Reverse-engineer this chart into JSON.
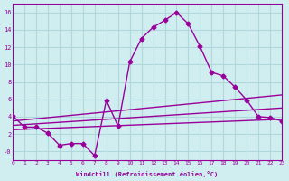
{
  "xlabel": "Windchill (Refroidissement éolien,°C)",
  "background_color": "#d0eef0",
  "grid_color": "#b0d8dc",
  "line_color": "#990099",
  "xlim": [
    0,
    23
  ],
  "ylim": [
    -1,
    17
  ],
  "xticks": [
    0,
    1,
    2,
    3,
    4,
    5,
    6,
    7,
    8,
    9,
    10,
    11,
    12,
    13,
    14,
    15,
    16,
    17,
    18,
    19,
    20,
    21,
    22,
    23
  ],
  "yticks": [
    0,
    2,
    4,
    6,
    8,
    10,
    12,
    14,
    16
  ],
  "ytick_labels": [
    "-0",
    "2",
    "4",
    "6",
    "8",
    "10",
    "12",
    "14",
    "16"
  ],
  "line1_x": [
    0,
    1,
    2,
    3,
    4,
    5,
    6,
    7,
    8,
    9,
    10,
    11,
    12,
    13,
    14,
    15,
    16,
    17,
    18,
    19,
    20,
    21,
    22,
    23
  ],
  "line1_y": [
    4.1,
    2.8,
    2.8,
    2.1,
    0.7,
    0.9,
    0.9,
    -0.5,
    5.9,
    2.9,
    10.3,
    13.0,
    14.3,
    15.1,
    16.0,
    14.7,
    12.1,
    9.1,
    8.7,
    7.4,
    5.9,
    4.0,
    3.9,
    3.5
  ],
  "line2_x": [
    0,
    23
  ],
  "line2_y": [
    3.5,
    6.5
  ],
  "line3_x": [
    0,
    23
  ],
  "line3_y": [
    3.0,
    5.0
  ],
  "line4_x": [
    0,
    23
  ],
  "line4_y": [
    2.5,
    3.7
  ]
}
